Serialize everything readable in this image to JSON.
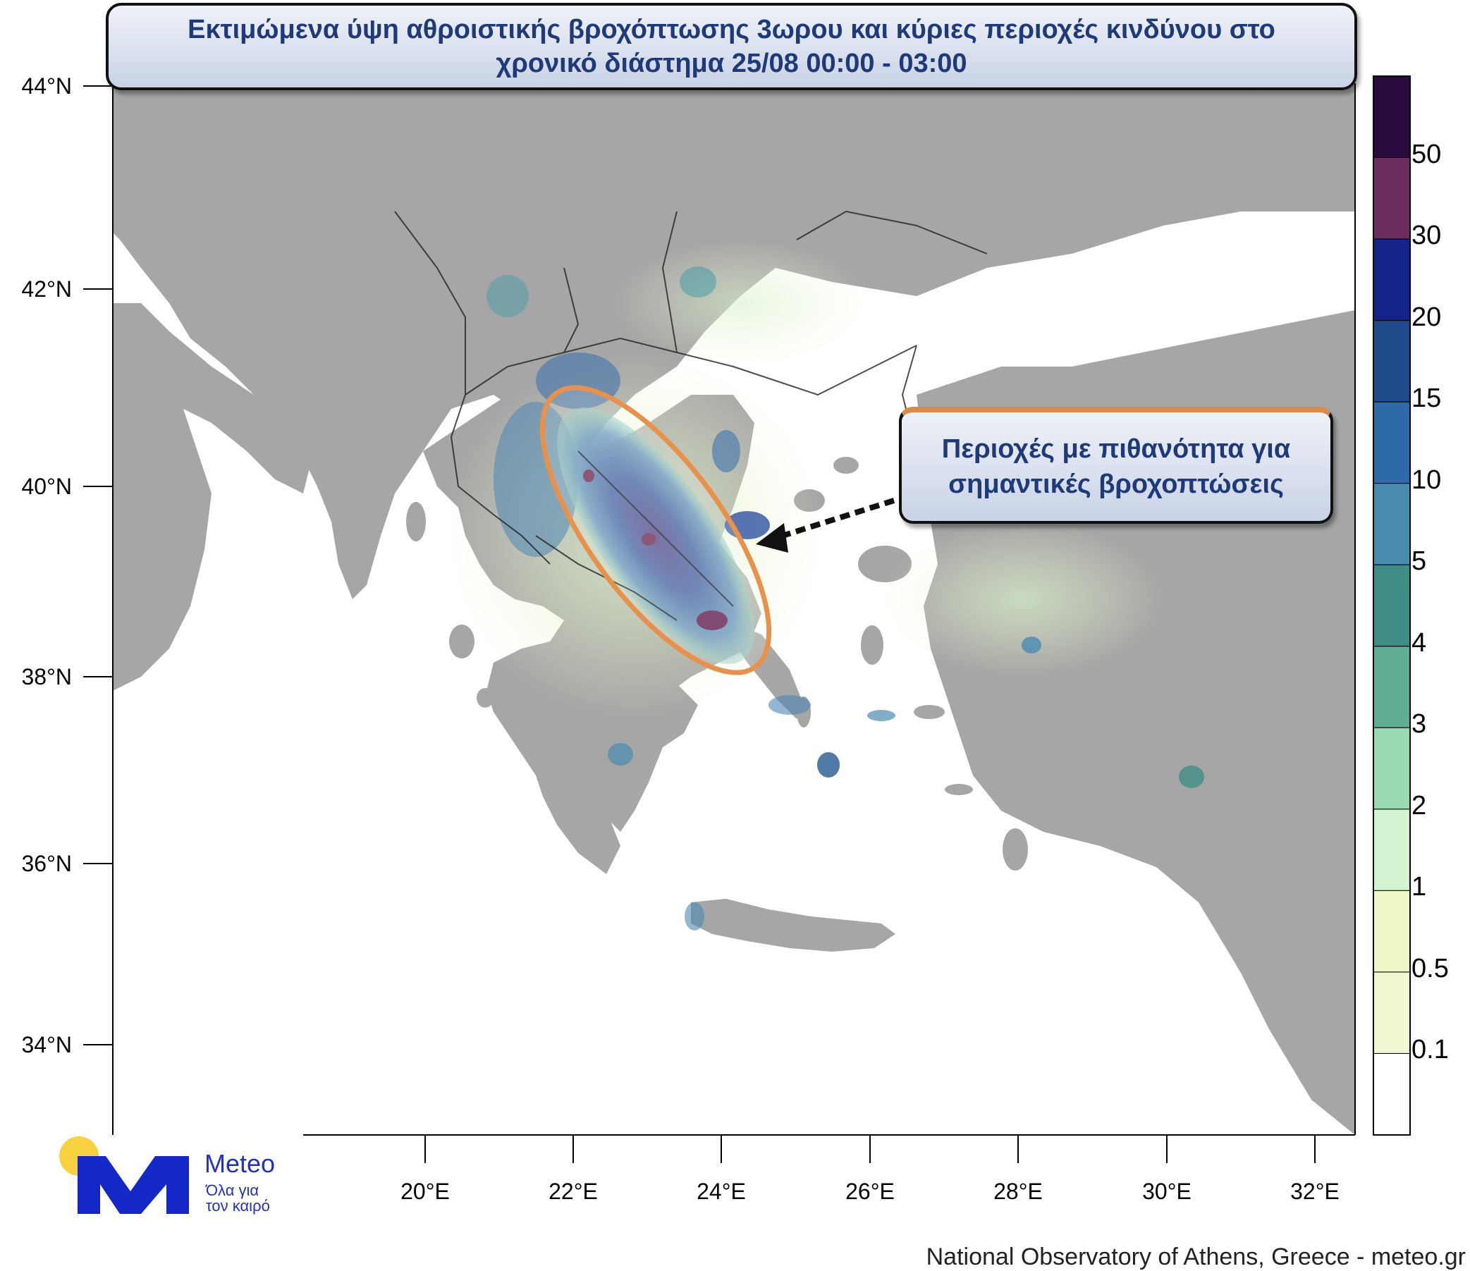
{
  "title": {
    "line1": "Εκτιμώμενα ύψη αθροιστικής βροχόπτωσης 3ωρου και κύριες περιοχές κινδύνου στο",
    "line2": "χρονικό διάστημα 25/08 00:00 - 03:00"
  },
  "callout": {
    "line1": "Περιοχές με πιθανότητα για",
    "line2": "σημαντικές βροχοπτώσεις"
  },
  "axes": {
    "lat_labels": [
      "44°N",
      "42°N",
      "40°N",
      "38°N",
      "36°N",
      "34°N"
    ],
    "lon_labels": [
      "20°E",
      "22°E",
      "24°E",
      "26°E",
      "28°E",
      "30°E",
      "32°E"
    ]
  },
  "colorbar": {
    "labels": [
      "50",
      "30",
      "20",
      "15",
      "10",
      "5",
      "4",
      "3",
      "2",
      "1",
      "0.5",
      "0.1"
    ],
    "colors": [
      "#2a0a3e",
      "#6b2d5c",
      "#13238a",
      "#1f4a8a",
      "#2e6aa8",
      "#4a8bb0",
      "#3e8e86",
      "#5fae94",
      "#9adab0",
      "#d2f2d0",
      "#eef6c8",
      "#f3f6d2",
      "#ffffff"
    ]
  },
  "logo": {
    "name": "Meteo",
    "tagline_line1": "Όλα για",
    "tagline_line2": "τον καιρό",
    "sun_color": "#f7d23e",
    "mark_color": "#1428c8"
  },
  "footer": "National Observatory of Athens, Greece - meteo.gr",
  "colors": {
    "land": "#a6a6a6",
    "sea": "#ffffff",
    "highlight_ellipse": "#e8914a",
    "title_text": "#1e3a78"
  }
}
